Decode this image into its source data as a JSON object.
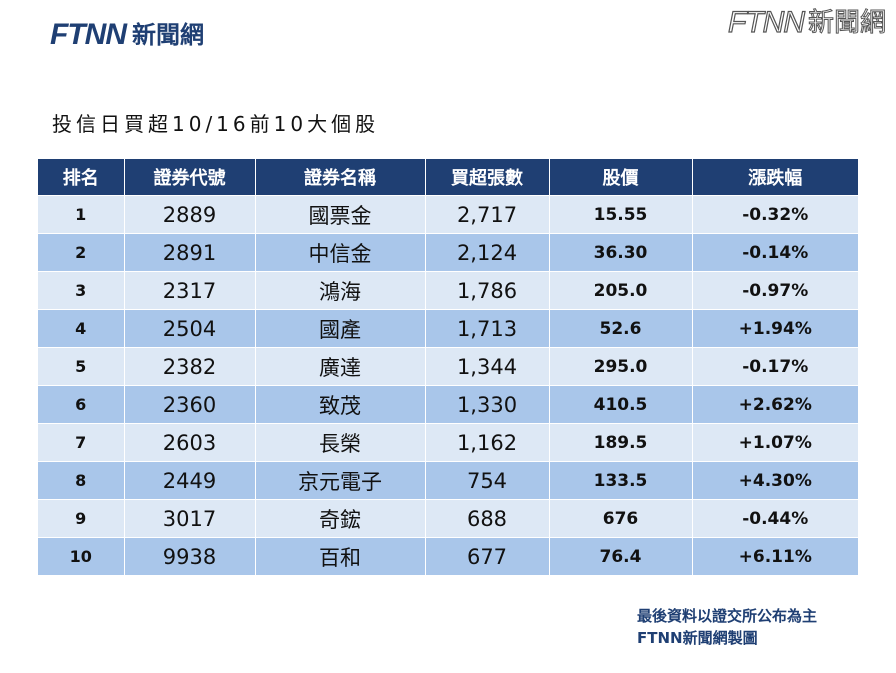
{
  "brand": {
    "logo_mark": "FTNN",
    "logo_text": "新聞網",
    "watermark_mark": "FTNN",
    "watermark_text": "新聞網"
  },
  "page": {
    "title": "投信日買超10/16前10大個股"
  },
  "table": {
    "headers": [
      "排名",
      "證券代號",
      "證券名稱",
      "買超張數",
      "股價",
      "漲跌幅"
    ],
    "rows": [
      [
        "1",
        "2889",
        "國票金",
        "2,717",
        "15.55",
        "-0.32%"
      ],
      [
        "2",
        "2891",
        "中信金",
        "2,124",
        "36.30",
        "-0.14%"
      ],
      [
        "3",
        "2317",
        "鴻海",
        "1,786",
        "205.0",
        "-0.97%"
      ],
      [
        "4",
        "2504",
        "國產",
        "1,713",
        "52.6",
        "+1.94%"
      ],
      [
        "5",
        "2382",
        "廣達",
        "1,344",
        "295.0",
        "-0.17%"
      ],
      [
        "6",
        "2360",
        "致茂",
        "1,330",
        "410.5",
        "+2.62%"
      ],
      [
        "7",
        "2603",
        "長榮",
        "1,162",
        "189.5",
        "+1.07%"
      ],
      [
        "8",
        "2449",
        "京元電子",
        "754",
        "133.5",
        "+4.30%"
      ],
      [
        "9",
        "3017",
        "奇鋐",
        "688",
        "676",
        "-0.44%"
      ],
      [
        "10",
        "9938",
        "百和",
        "677",
        "76.4",
        "+6.11%"
      ]
    ]
  },
  "footer": {
    "line1": "最後資料以證交所公布為主",
    "line2": "FTNN新聞網製圖"
  },
  "colors": {
    "header_bg": "#1f3f73",
    "row_light": "#dde8f5",
    "row_dark": "#a9c6ea",
    "accent": "#f08a00"
  }
}
